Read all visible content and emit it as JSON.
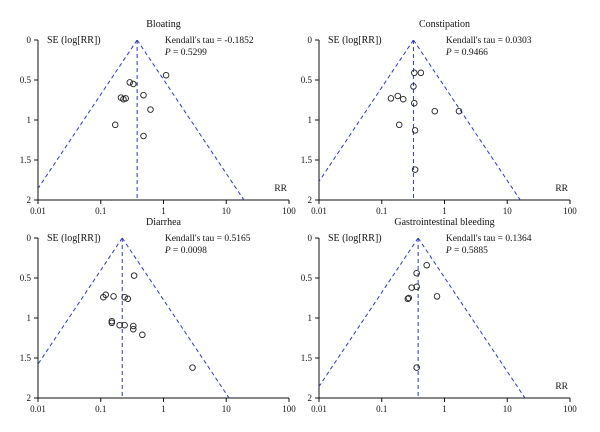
{
  "chart_data": [
    {
      "type": "scatter",
      "title": "Bloating",
      "stat_label": "Kendall's tau = -0.1852",
      "p_label": "P",
      "p_value": " = 0.5299",
      "xlabel": "RR",
      "ylabel": "SE (log[RR])",
      "x_scale": "log",
      "xlim": [
        0.01,
        100
      ],
      "ylim": [
        0,
        2
      ],
      "y_inverted": true,
      "x_ticks": [
        "0.01",
        "0.1",
        "1",
        "10",
        "100"
      ],
      "y_ticks": [
        "0",
        "0.5",
        "1",
        "1.5",
        "2"
      ],
      "pooled_rr": 0.38,
      "points": [
        {
          "x": 0.29,
          "y": 0.53
        },
        {
          "x": 0.33,
          "y": 0.55
        },
        {
          "x": 1.1,
          "y": 0.44
        },
        {
          "x": 0.21,
          "y": 0.72
        },
        {
          "x": 0.23,
          "y": 0.74
        },
        {
          "x": 0.25,
          "y": 0.73
        },
        {
          "x": 0.48,
          "y": 0.69
        },
        {
          "x": 0.62,
          "y": 0.87
        },
        {
          "x": 0.17,
          "y": 1.06
        },
        {
          "x": 0.48,
          "y": 1.2
        }
      ]
    },
    {
      "type": "scatter",
      "title": "Constipation",
      "stat_label": "Kendall's tau = 0.0303",
      "p_label": "P",
      "p_value": " = 0.9466",
      "xlabel": "RR",
      "ylabel": "SE (log[RR])",
      "x_scale": "log",
      "xlim": [
        0.01,
        100
      ],
      "ylim": [
        0,
        2
      ],
      "y_inverted": true,
      "x_ticks": [
        "0.01",
        "0.1",
        "1",
        "10",
        "100"
      ],
      "y_ticks": [
        "0",
        "0.5",
        "1",
        "1.5",
        "2"
      ],
      "pooled_rr": 0.32,
      "points": [
        {
          "x": 0.33,
          "y": 0.41
        },
        {
          "x": 0.42,
          "y": 0.41
        },
        {
          "x": 0.32,
          "y": 0.58
        },
        {
          "x": 0.14,
          "y": 0.73
        },
        {
          "x": 0.18,
          "y": 0.7
        },
        {
          "x": 0.22,
          "y": 0.74
        },
        {
          "x": 0.33,
          "y": 0.79
        },
        {
          "x": 0.7,
          "y": 0.89
        },
        {
          "x": 1.7,
          "y": 0.89
        },
        {
          "x": 0.19,
          "y": 1.06
        },
        {
          "x": 0.34,
          "y": 1.13
        },
        {
          "x": 0.34,
          "y": 1.62
        }
      ]
    },
    {
      "type": "scatter",
      "title": "Diarrhea",
      "stat_label": "Kendall's tau = 0.5165",
      "p_label": "P",
      "p_value": " = 0.0098",
      "xlabel": "",
      "ylabel": "SE (log[RR])",
      "x_scale": "log",
      "xlim": [
        0.01,
        100
      ],
      "ylim": [
        0,
        2
      ],
      "y_inverted": true,
      "x_ticks": [
        "0.01",
        "0.1",
        "1",
        "10",
        "100"
      ],
      "y_ticks": [
        "0",
        "0.5",
        "1",
        "1.5",
        "2"
      ],
      "pooled_rr": 0.22,
      "points": [
        {
          "x": 0.34,
          "y": 0.47
        },
        {
          "x": 0.12,
          "y": 0.71
        },
        {
          "x": 0.11,
          "y": 0.74
        },
        {
          "x": 0.16,
          "y": 0.73
        },
        {
          "x": 0.24,
          "y": 0.74
        },
        {
          "x": 0.27,
          "y": 0.76
        },
        {
          "x": 0.15,
          "y": 1.04
        },
        {
          "x": 0.15,
          "y": 1.06
        },
        {
          "x": 0.2,
          "y": 1.09
        },
        {
          "x": 0.24,
          "y": 1.09
        },
        {
          "x": 0.33,
          "y": 1.1
        },
        {
          "x": 0.33,
          "y": 1.14
        },
        {
          "x": 0.46,
          "y": 1.21
        },
        {
          "x": 2.9,
          "y": 1.62
        }
      ]
    },
    {
      "type": "scatter",
      "title": "Gastrointestinal bleeding",
      "stat_label": "Kendall's tau = 0.1364",
      "p_label": "P",
      "p_value": " = 0.5885",
      "xlabel": "RR",
      "ylabel": "SE (log[RR])",
      "x_scale": "log",
      "xlim": [
        0.01,
        100
      ],
      "ylim": [
        0,
        2
      ],
      "y_inverted": true,
      "x_ticks": [
        "0.01",
        "0.1",
        "1",
        "10",
        "100"
      ],
      "y_ticks": [
        "0",
        "0.5",
        "1",
        "1.5",
        "2"
      ],
      "pooled_rr": 0.38,
      "points": [
        {
          "x": 0.52,
          "y": 0.34
        },
        {
          "x": 0.36,
          "y": 0.44
        },
        {
          "x": 0.3,
          "y": 0.62
        },
        {
          "x": 0.36,
          "y": 0.61
        },
        {
          "x": 0.26,
          "y": 0.76
        },
        {
          "x": 0.27,
          "y": 0.75
        },
        {
          "x": 0.76,
          "y": 0.73
        },
        {
          "x": 0.36,
          "y": 1.62
        }
      ]
    }
  ],
  "colors": {
    "axis": "#111111",
    "funnel": "#2b3bb5",
    "points": "#222222"
  }
}
